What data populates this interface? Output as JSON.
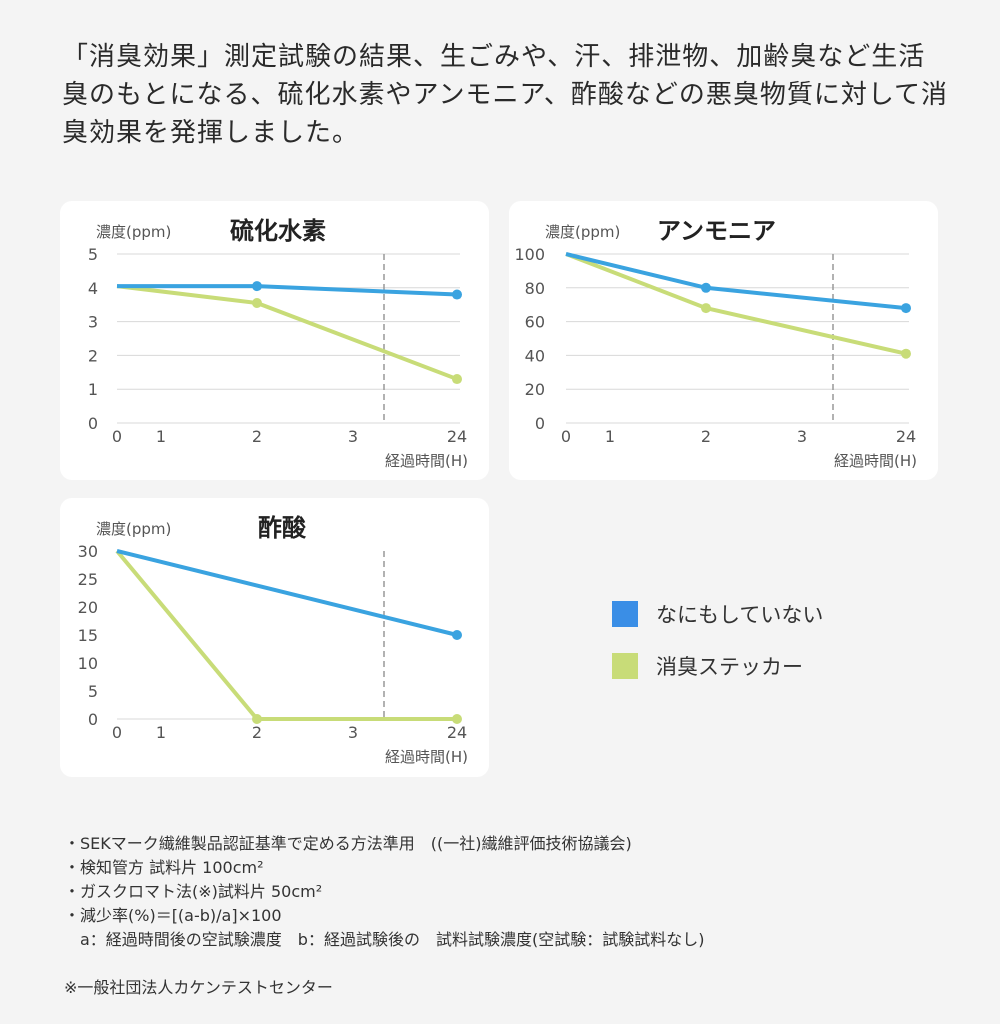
{
  "intro": "「消臭効果」測定試験の結果、生ごみや、汗、排泄物、加齢臭など生活臭のもとになる、硫化水素やアンモニア、酢酸などの悪臭物質に対して消臭効果を発揮しました。",
  "colors": {
    "none": "#3aa3e0",
    "sticker": "#c8dc78"
  },
  "legend": [
    {
      "label": "なにもしていない",
      "color": "#3a8ee6"
    },
    {
      "label": "消臭ステッカー",
      "color": "#c8dc78"
    }
  ],
  "chart_data": [
    {
      "type": "line",
      "title": "硫化水素",
      "ylabel": "濃度(ppm)",
      "xlabel": "経過時間(H)",
      "x_ticks": [
        "0",
        "1",
        "2",
        "3",
        "24"
      ],
      "y_ticks": [
        "0",
        "1",
        "2",
        "3",
        "4",
        "5"
      ],
      "ylim": [
        0,
        5
      ],
      "x": [
        "0",
        "2",
        "24"
      ],
      "grid": true,
      "series": [
        {
          "name": "なにもしていない",
          "values": [
            4.05,
            4.05,
            3.8
          ]
        },
        {
          "name": "消臭ステッカー",
          "values": [
            4.05,
            3.55,
            1.3
          ]
        }
      ]
    },
    {
      "type": "line",
      "title": "アンモニア",
      "ylabel": "濃度(ppm)",
      "xlabel": "経過時間(H)",
      "x_ticks": [
        "0",
        "1",
        "2",
        "3",
        "24"
      ],
      "y_ticks": [
        "0",
        "20",
        "40",
        "60",
        "80",
        "100"
      ],
      "ylim": [
        0,
        100
      ],
      "x": [
        "0",
        "2",
        "24"
      ],
      "grid": true,
      "series": [
        {
          "name": "なにもしていない",
          "values": [
            100,
            80,
            68
          ]
        },
        {
          "name": "消臭ステッカー",
          "values": [
            100,
            68,
            41
          ]
        }
      ]
    },
    {
      "type": "line",
      "title": "酢酸",
      "ylabel": "濃度(ppm)",
      "xlabel": "経過時間(H)",
      "x_ticks": [
        "0",
        "1",
        "2",
        "3",
        "24"
      ],
      "y_ticks": [
        "0",
        "5",
        "10",
        "15",
        "20",
        "25",
        "30"
      ],
      "ylim": [
        0,
        30
      ],
      "x": [
        "0",
        "2",
        "24"
      ],
      "grid": false,
      "series": [
        {
          "name": "なにもしていない",
          "values": [
            30,
            null,
            15
          ]
        },
        {
          "name": "消臭ステッカー",
          "values": [
            30,
            0,
            0
          ]
        }
      ]
    }
  ],
  "notes": [
    "・SEKマーク繊維製品認証基準で定める方法準用　((一社)繊維評価技術協議会)",
    "・検知管方 試料片 100cm²",
    "・ガスクロマト法(※)試料片 50cm²",
    "・減少率(%)＝[(a-b)/a]×100",
    "　a：経過時間後の空試験濃度　b：経過試験後の　試料試験濃度(空試験：試験試料なし)",
    "",
    "※一般社団法人カケンテストセンター"
  ]
}
